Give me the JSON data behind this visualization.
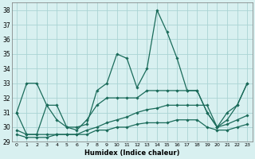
{
  "xlabel": "Humidex (Indice chaleur)",
  "xlim": [
    -0.5,
    23.5
  ],
  "ylim": [
    29,
    38.5
  ],
  "yticks": [
    29,
    30,
    31,
    32,
    33,
    34,
    35,
    36,
    37,
    38
  ],
  "xticks": [
    0,
    1,
    2,
    3,
    4,
    5,
    6,
    7,
    8,
    9,
    10,
    11,
    12,
    13,
    14,
    15,
    16,
    17,
    18,
    19,
    20,
    21,
    22,
    23
  ],
  "bg_color": "#d8f0f0",
  "grid_color": "#aad4d4",
  "line_color": "#1a6b5a",
  "lines": [
    {
      "x": [
        0,
        1,
        2,
        3,
        4,
        5,
        6,
        7,
        8,
        9,
        10,
        11,
        12,
        13,
        14,
        15,
        16,
        17,
        18,
        19,
        20,
        21,
        22,
        23
      ],
      "y": [
        31,
        33,
        33,
        31.5,
        30.5,
        30,
        30,
        30.2,
        32.5,
        33,
        35,
        34.7,
        32.7,
        34,
        38,
        36.5,
        34.7,
        32.5,
        32.5,
        31,
        30,
        31,
        31.5,
        33
      ],
      "marker": "D",
      "markersize": 1.8,
      "linewidth": 0.9
    },
    {
      "x": [
        0,
        1,
        2,
        3,
        4,
        5,
        6,
        7,
        8,
        9,
        10,
        11,
        12,
        13,
        14,
        15,
        16,
        17,
        18,
        19,
        20,
        21,
        22,
        23
      ],
      "y": [
        31,
        29.5,
        29.5,
        31.5,
        31.5,
        30,
        29.8,
        30.5,
        31.5,
        32,
        32,
        32,
        32,
        32.5,
        32.5,
        32.5,
        32.5,
        32.5,
        32.5,
        31,
        30,
        30.5,
        31.5,
        33
      ],
      "marker": "D",
      "markersize": 1.8,
      "linewidth": 0.9
    },
    {
      "x": [
        0,
        1,
        2,
        3,
        4,
        5,
        6,
        7,
        8,
        9,
        10,
        11,
        12,
        13,
        14,
        15,
        16,
        17,
        18,
        19,
        20,
        21,
        22,
        23
      ],
      "y": [
        29.8,
        29.5,
        29.5,
        29.5,
        29.5,
        29.5,
        29.5,
        29.8,
        30.0,
        30.3,
        30.5,
        30.7,
        31.0,
        31.2,
        31.3,
        31.5,
        31.5,
        31.5,
        31.5,
        31.5,
        30.0,
        30.2,
        30.5,
        30.8
      ],
      "marker": "D",
      "markersize": 1.8,
      "linewidth": 0.9
    },
    {
      "x": [
        0,
        1,
        2,
        3,
        4,
        5,
        6,
        7,
        8,
        9,
        10,
        11,
        12,
        13,
        14,
        15,
        16,
        17,
        18,
        19,
        20,
        21,
        22,
        23
      ],
      "y": [
        29.5,
        29.3,
        29.3,
        29.3,
        29.5,
        29.5,
        29.5,
        29.5,
        29.8,
        29.8,
        30.0,
        30.0,
        30.2,
        30.3,
        30.3,
        30.3,
        30.5,
        30.5,
        30.5,
        30.0,
        29.8,
        29.8,
        30.0,
        30.2
      ],
      "marker": "D",
      "markersize": 1.8,
      "linewidth": 0.9
    }
  ]
}
